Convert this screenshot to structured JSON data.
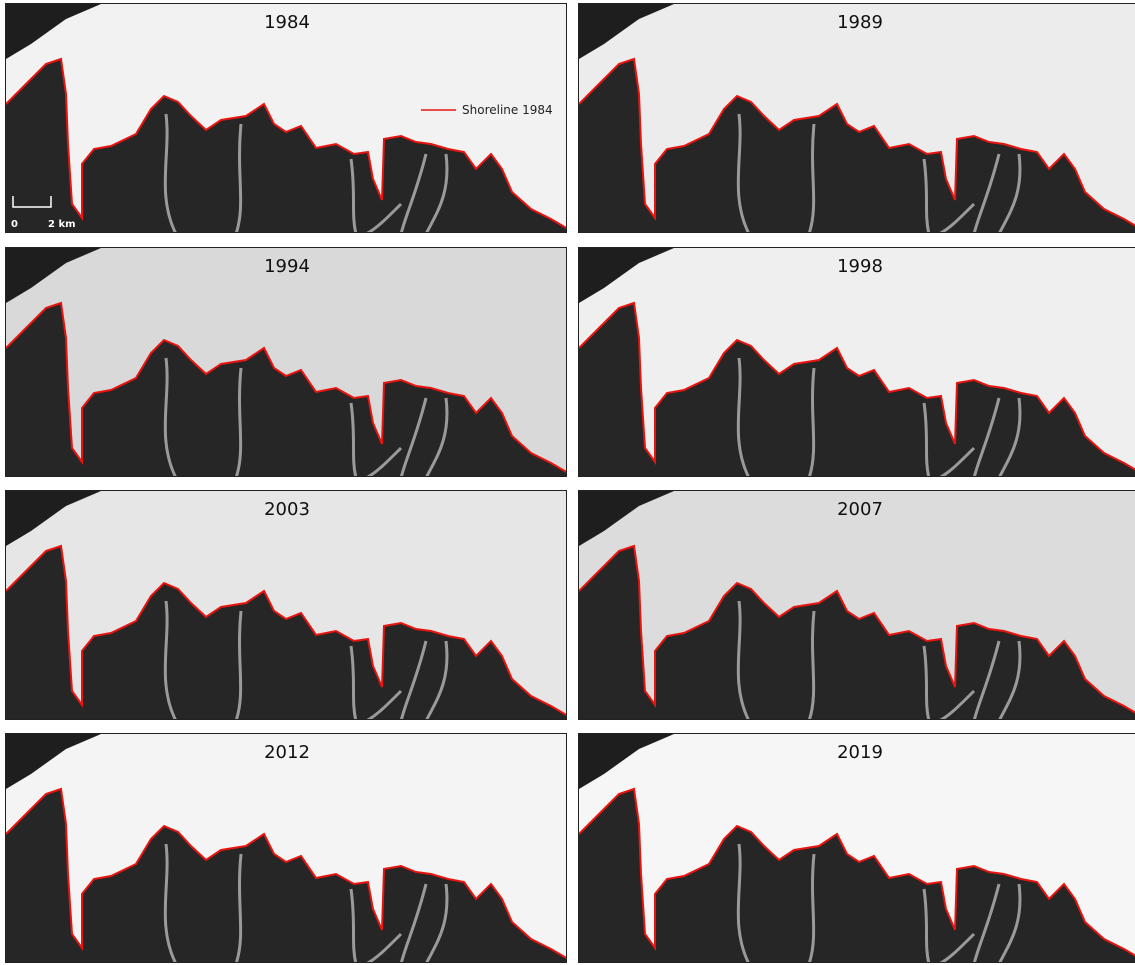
{
  "panels": [
    {
      "title": "1984"
    },
    {
      "title": "1989"
    },
    {
      "title": "1994"
    },
    {
      "title": "1998"
    },
    {
      "title": "2003"
    },
    {
      "title": "2007"
    },
    {
      "title": "2012"
    },
    {
      "title": "2019"
    }
  ],
  "legend": {
    "label": "Shoreline 1984"
  },
  "scale_bar": {
    "start": "0",
    "end": "2 km"
  }
}
